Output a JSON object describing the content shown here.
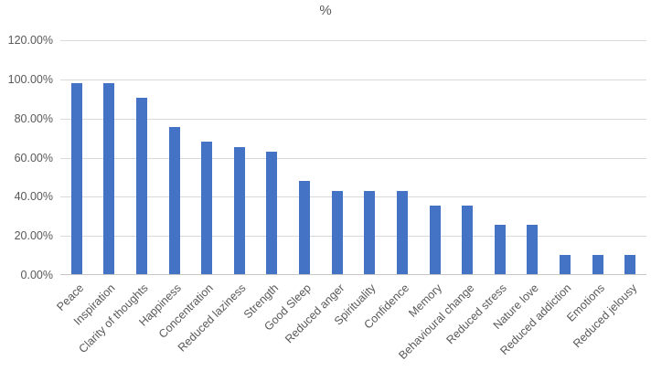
{
  "chart_data": {
    "type": "bar",
    "title": "%",
    "xlabel": "",
    "ylabel": "",
    "ylim": [
      0,
      120
    ],
    "grid": true,
    "legend": false,
    "categories": [
      "Peace",
      "Inspiration",
      "Clarity of thoughts",
      "Happiness",
      "Concentration",
      "Reduced laziness",
      "Strength",
      "Good Sleep",
      "Reduced anger",
      "Spirituality",
      "Confidence",
      "Memory",
      "Behavioural change",
      "Reduced stress",
      "Nature love",
      "Reduced addiction",
      "Emotions",
      "Reduced jelousy"
    ],
    "values": [
      97.5,
      97.5,
      90,
      75,
      67.5,
      65,
      62.5,
      47.5,
      42.5,
      42.5,
      42.5,
      35,
      35,
      25,
      25,
      10,
      10,
      10
    ],
    "y_ticks": [
      {
        "value": 0,
        "label": "0.00%"
      },
      {
        "value": 20,
        "label": "20.00%"
      },
      {
        "value": 40,
        "label": "40.00%"
      },
      {
        "value": 60,
        "label": "60.00%"
      },
      {
        "value": 80,
        "label": "80.00%"
      },
      {
        "value": 100,
        "label": "100.00%"
      },
      {
        "value": 120,
        "label": "120.00%"
      }
    ]
  },
  "style": {
    "bar_color": "#4472C4",
    "gridline_color": "#D9D9D9",
    "axis_line_color": "#C6C6C6",
    "text_color": "#595959",
    "background_color": "#FFFFFF"
  }
}
